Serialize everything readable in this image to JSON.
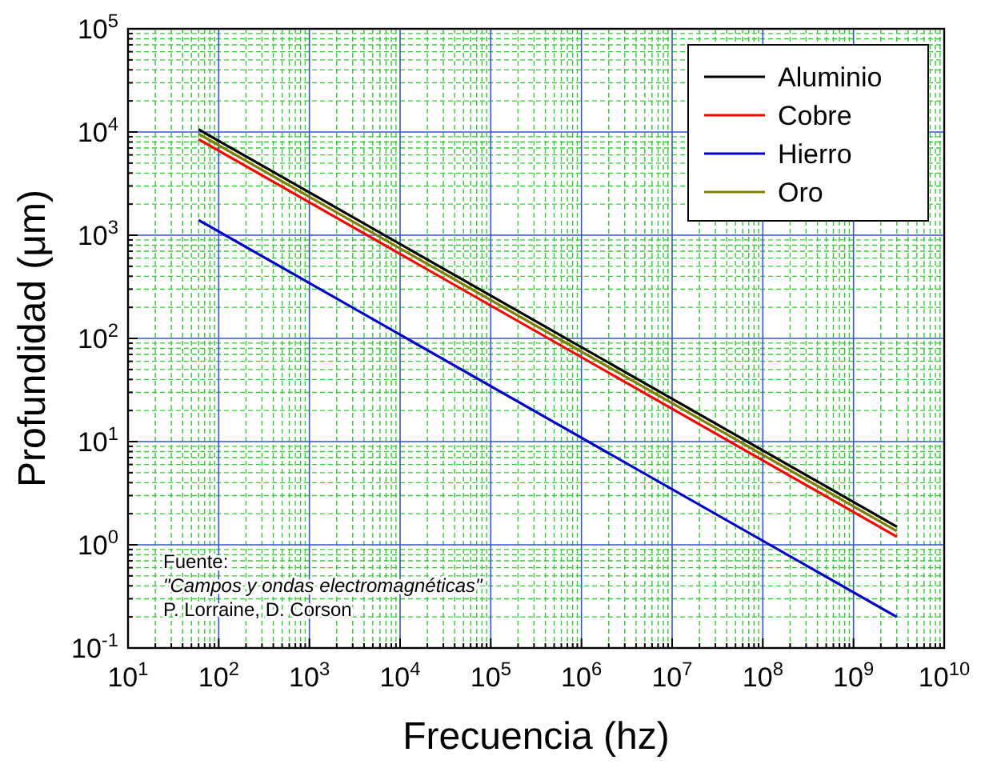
{
  "chart_data": {
    "type": "line",
    "xlabel": "Frecuencia (hz)",
    "ylabel": "Profundidad (μm)",
    "log": "xy",
    "grid": true,
    "legend": "top right",
    "line_style": "solid",
    "xlim": [
      10,
      10000000000
    ],
    "ylim": [
      0.1,
      100000
    ],
    "xticks": [
      {
        "value": 10,
        "label": "10$^{1}$"
      },
      {
        "value": 20,
        "label": null
      },
      {
        "value": 30,
        "label": null
      },
      {
        "value": 40,
        "label": null
      },
      {
        "value": 50,
        "label": null
      },
      {
        "value": 60,
        "label": null
      },
      {
        "value": 70,
        "label": null
      },
      {
        "value": 80,
        "label": null
      },
      {
        "value": 90,
        "label": null
      },
      {
        "value": 100,
        "label": "10$^{2}$"
      },
      {
        "value": 200,
        "label": null
      },
      {
        "value": 300,
        "label": null
      },
      {
        "value": 400,
        "label": null
      },
      {
        "value": 500,
        "label": null
      },
      {
        "value": 600,
        "label": null
      },
      {
        "value": 700,
        "label": null
      },
      {
        "value": 800,
        "label": null
      },
      {
        "value": 900,
        "label": null
      },
      {
        "value": 1000,
        "label": "10$^{3}$"
      },
      {
        "value": 2000,
        "label": null
      },
      {
        "value": 3000,
        "label": null
      },
      {
        "value": 4000,
        "label": null
      },
      {
        "value": 5000,
        "label": null
      },
      {
        "value": 6000,
        "label": null
      },
      {
        "value": 7000,
        "label": null
      },
      {
        "value": 8000,
        "label": null
      },
      {
        "value": 9000,
        "label": null
      },
      {
        "value": 10000,
        "label": "10$^{4}$"
      },
      {
        "value": 20000,
        "label": null
      },
      {
        "value": 30000,
        "label": null
      },
      {
        "value": 40000,
        "label": null
      },
      {
        "value": 50000,
        "label": null
      },
      {
        "value": 60000,
        "label": null
      },
      {
        "value": 70000,
        "label": null
      },
      {
        "value": 80000,
        "label": null
      },
      {
        "value": 90000,
        "label": null
      },
      {
        "value": 100000,
        "label": "10$^{5}$"
      },
      {
        "value": 200000,
        "label": null
      },
      {
        "value": 300000,
        "label": null
      },
      {
        "value": 400000,
        "label": null
      },
      {
        "value": 500000,
        "label": null
      },
      {
        "value": 600000,
        "label": null
      },
      {
        "value": 700000,
        "label": null
      },
      {
        "value": 800000,
        "label": null
      },
      {
        "value": 900000,
        "label": null
      },
      {
        "value": 1000000,
        "label": "10$^{6}$"
      },
      {
        "value": 2000000,
        "label": null
      },
      {
        "value": 3000000,
        "label": null
      },
      {
        "value": 4000000,
        "label": null
      },
      {
        "value": 5000000,
        "label": null
      },
      {
        "value": 6000000,
        "label": null
      },
      {
        "value": 7000000,
        "label": null
      },
      {
        "value": 8000000,
        "label": null
      },
      {
        "value": 9000000,
        "label": null
      },
      {
        "value": 10000000,
        "label": "10$^{7}$"
      },
      {
        "value": 20000000,
        "label": null
      },
      {
        "value": 30000000,
        "label": null
      },
      {
        "value": 40000000,
        "label": null
      },
      {
        "value": 50000000,
        "label": null
      },
      {
        "value": 60000000,
        "label": null
      },
      {
        "value": 70000000,
        "label": null
      },
      {
        "value": 80000000,
        "label": null
      },
      {
        "value": 90000000,
        "label": null
      },
      {
        "value": 100000000,
        "label": "10$^{8}$"
      },
      {
        "value": 200000000,
        "label": null
      },
      {
        "value": 300000000,
        "label": null
      },
      {
        "value": 400000000,
        "label": null
      },
      {
        "value": 500000000,
        "label": null
      },
      {
        "value": 600000000,
        "label": null
      },
      {
        "value": 700000000,
        "label": null
      },
      {
        "value": 800000000,
        "label": null
      },
      {
        "value": 900000000,
        "label": null
      },
      {
        "value": 1000000000,
        "label": "10$^{9}$"
      },
      {
        "value": 2000000000,
        "label": null
      },
      {
        "value": 3000000000,
        "label": null
      },
      {
        "value": 4000000000,
        "label": null
      },
      {
        "value": 5000000000,
        "label": null
      },
      {
        "value": 6000000000,
        "label": null
      },
      {
        "value": 7000000000,
        "label": null
      },
      {
        "value": 8000000000,
        "label": null
      },
      {
        "value": 9000000000,
        "label": null
      },
      {
        "value": 10000000000,
        "label": "10$^{10}$"
      }
    ],
    "yticks": [
      {
        "value": 0.1,
        "label": "10$^{-1}$"
      },
      {
        "value": 0.2,
        "label": null
      },
      {
        "value": 0.3,
        "label": null
      },
      {
        "value": 0.4,
        "label": null
      },
      {
        "value": 0.5,
        "label": null
      },
      {
        "value": 0.6,
        "label": null
      },
      {
        "value": 0.7,
        "label": null
      },
      {
        "value": 0.8,
        "label": null
      },
      {
        "value": 0.9,
        "label": null
      },
      {
        "value": 1,
        "label": "10$^{0}$"
      },
      {
        "value": 2,
        "label": null
      },
      {
        "value": 3,
        "label": null
      },
      {
        "value": 4,
        "label": null
      },
      {
        "value": 5,
        "label": null
      },
      {
        "value": 6,
        "label": null
      },
      {
        "value": 7,
        "label": null
      },
      {
        "value": 8,
        "label": null
      },
      {
        "value": 9,
        "label": null
      },
      {
        "value": 10,
        "label": "10$^{1}$"
      },
      {
        "value": 20,
        "label": null
      },
      {
        "value": 30,
        "label": null
      },
      {
        "value": 40,
        "label": null
      },
      {
        "value": 50,
        "label": null
      },
      {
        "value": 60,
        "label": null
      },
      {
        "value": 70,
        "label": null
      },
      {
        "value": 80,
        "label": null
      },
      {
        "value": 90,
        "label": null
      },
      {
        "value": 100,
        "label": "10$^{2}$"
      },
      {
        "value": 200,
        "label": null
      },
      {
        "value": 300,
        "label": null
      },
      {
        "value": 400,
        "label": null
      },
      {
        "value": 500,
        "label": null
      },
      {
        "value": 600,
        "label": null
      },
      {
        "value": 700,
        "label": null
      },
      {
        "value": 800,
        "label": null
      },
      {
        "value": 900,
        "label": null
      },
      {
        "value": 1000,
        "label": "10$^{3}$"
      },
      {
        "value": 2000,
        "label": null
      },
      {
        "value": 3000,
        "label": null
      },
      {
        "value": 4000,
        "label": null
      },
      {
        "value": 5000,
        "label": null
      },
      {
        "value": 6000,
        "label": null
      },
      {
        "value": 7000,
        "label": null
      },
      {
        "value": 8000,
        "label": null
      },
      {
        "value": 9000,
        "label": null
      },
      {
        "value": 10000,
        "label": "10$^{4}$"
      },
      {
        "value": 20000,
        "label": null
      },
      {
        "value": 30000,
        "label": null
      },
      {
        "value": 40000,
        "label": null
      },
      {
        "value": 50000,
        "label": null
      },
      {
        "value": 60000,
        "label": null
      },
      {
        "value": 70000,
        "label": null
      },
      {
        "value": 80000,
        "label": null
      },
      {
        "value": 90000,
        "label": null
      },
      {
        "value": 100000,
        "label": "10$^{5}$"
      }
    ],
    "x": [
      60,
      3000000000
    ],
    "series": [
      {
        "name": "Aluminio",
        "color": "#000000",
        "values": [
          10600,
          1.5
        ]
      },
      {
        "name": "Cobre",
        "color": "#ff0000",
        "values": [
          8500,
          1.2
        ]
      },
      {
        "name": "Hierro",
        "color": "#0000cc",
        "values": [
          1400,
          0.2
        ]
      },
      {
        "name": "Oro",
        "color": "#808000",
        "values": [
          9600,
          1.36
        ]
      }
    ],
    "annotations": [
      "Fuente:",
      "\"Campos y ondas electromagnéticas\"",
      "P. Lorraine, D. Corson"
    ]
  }
}
